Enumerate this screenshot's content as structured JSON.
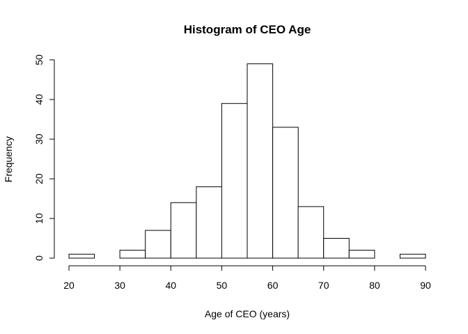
{
  "chart_data": {
    "type": "bar",
    "title": "Histogram of CEO Age",
    "xlabel": "Age of CEO (years)",
    "ylabel": "Frequency",
    "bin_edges": [
      20,
      25,
      30,
      35,
      40,
      45,
      50,
      55,
      60,
      65,
      70,
      75,
      80,
      85,
      90
    ],
    "values": [
      1,
      0,
      2,
      7,
      14,
      18,
      39,
      49,
      33,
      13,
      5,
      2,
      0,
      1
    ],
    "xlim": [
      20,
      90
    ],
    "ylim": [
      0,
      50
    ],
    "xticks": [
      "20",
      "30",
      "40",
      "50",
      "60",
      "70",
      "80",
      "90"
    ],
    "yticks": [
      "0",
      "10",
      "20",
      "30",
      "40",
      "50"
    ],
    "grid": false,
    "legend": "none"
  }
}
